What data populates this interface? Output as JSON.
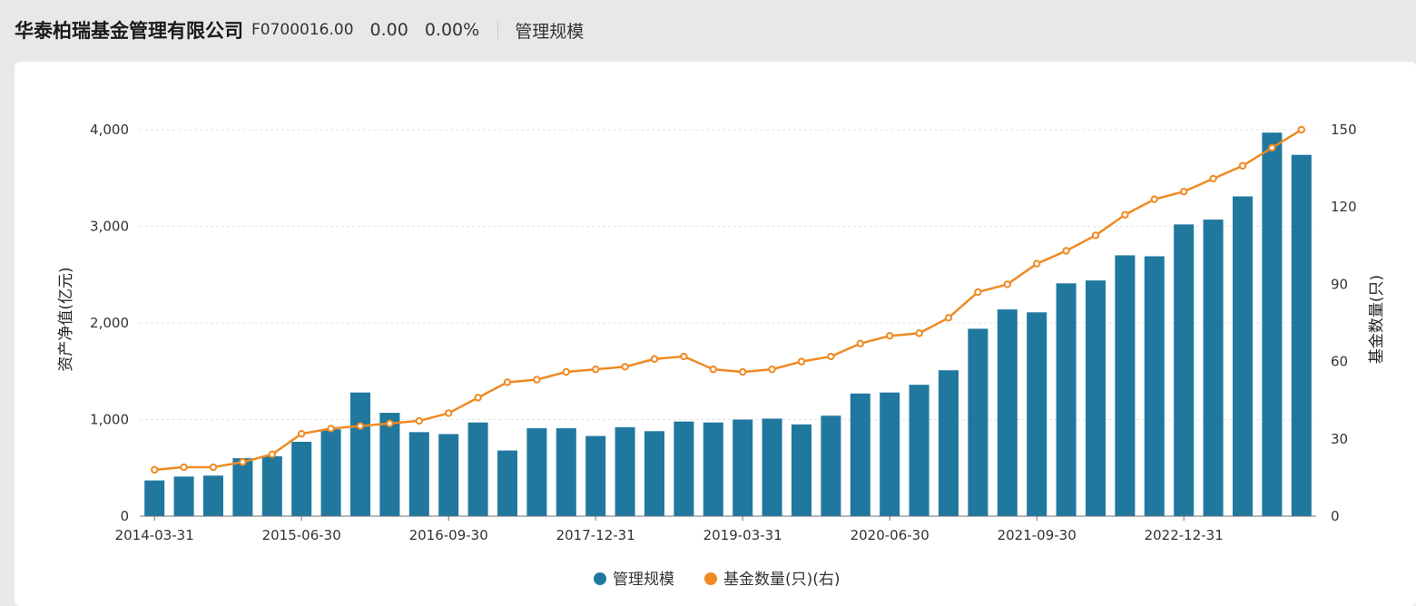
{
  "header": {
    "company": "华泰柏瑞基金管理有限公司",
    "code": "F0700016.00",
    "change": "0.00",
    "change_pct": "0.00%",
    "tab": "管理规模"
  },
  "chart_data": {
    "type": "bar",
    "categories": [
      "2014-03-31",
      "2014-06-30",
      "2014-09-30",
      "2014-12-31",
      "2015-03-31",
      "2015-06-30",
      "2015-09-30",
      "2015-12-31",
      "2016-03-31",
      "2016-06-30",
      "2016-09-30",
      "2016-12-31",
      "2017-03-31",
      "2017-06-30",
      "2017-09-30",
      "2017-12-31",
      "2018-03-31",
      "2018-06-30",
      "2018-09-30",
      "2018-12-31",
      "2019-03-31",
      "2019-06-30",
      "2019-09-30",
      "2019-12-31",
      "2020-03-31",
      "2020-06-30",
      "2020-09-30",
      "2020-12-31",
      "2021-03-31",
      "2021-06-30",
      "2021-09-30",
      "2021-12-31",
      "2022-03-31",
      "2022-06-30",
      "2022-09-30",
      "2022-12-31",
      "2023-03-31",
      "2023-06-30",
      "2023-09-30",
      "2023-12-31"
    ],
    "x_tick_labels": [
      "2014-03-31",
      "2015-06-30",
      "2016-09-30",
      "2017-12-31",
      "2019-03-31",
      "2020-06-30",
      "2021-09-30",
      "2022-12-31"
    ],
    "series": [
      {
        "name": "管理规模",
        "type": "bar",
        "axis": "left",
        "color": "#21789f",
        "values": [
          370,
          410,
          420,
          600,
          620,
          770,
          900,
          1280,
          1070,
          870,
          850,
          970,
          680,
          910,
          910,
          830,
          920,
          880,
          980,
          970,
          1000,
          1010,
          950,
          1040,
          1270,
          1280,
          1360,
          1510,
          1940,
          2140,
          2110,
          2410,
          2440,
          2700,
          2690,
          3020,
          3070,
          3310,
          3970,
          3740
        ]
      },
      {
        "name": "基金数量(只)(右)",
        "type": "line",
        "axis": "right",
        "color": "#ef8a22",
        "values": [
          18,
          19,
          19,
          21,
          24,
          32,
          34,
          35,
          36,
          37,
          40,
          46,
          52,
          53,
          56,
          57,
          58,
          61,
          62,
          57,
          56,
          57,
          60,
          62,
          67,
          70,
          71,
          77,
          87,
          90,
          98,
          103,
          109,
          117,
          123,
          126,
          131,
          136,
          143,
          150
        ]
      }
    ],
    "left_axis": {
      "label": "资产净值(亿元)",
      "ticks": [
        "0",
        "1,000",
        "2,000",
        "3,000",
        "4,000"
      ],
      "range": [
        0,
        4000
      ]
    },
    "right_axis": {
      "label": "基金数量(只)",
      "ticks": [
        "0",
        "30",
        "60",
        "90",
        "120",
        "150"
      ],
      "range": [
        0,
        150
      ]
    },
    "grid": true,
    "legend_position": "bottom-center"
  }
}
